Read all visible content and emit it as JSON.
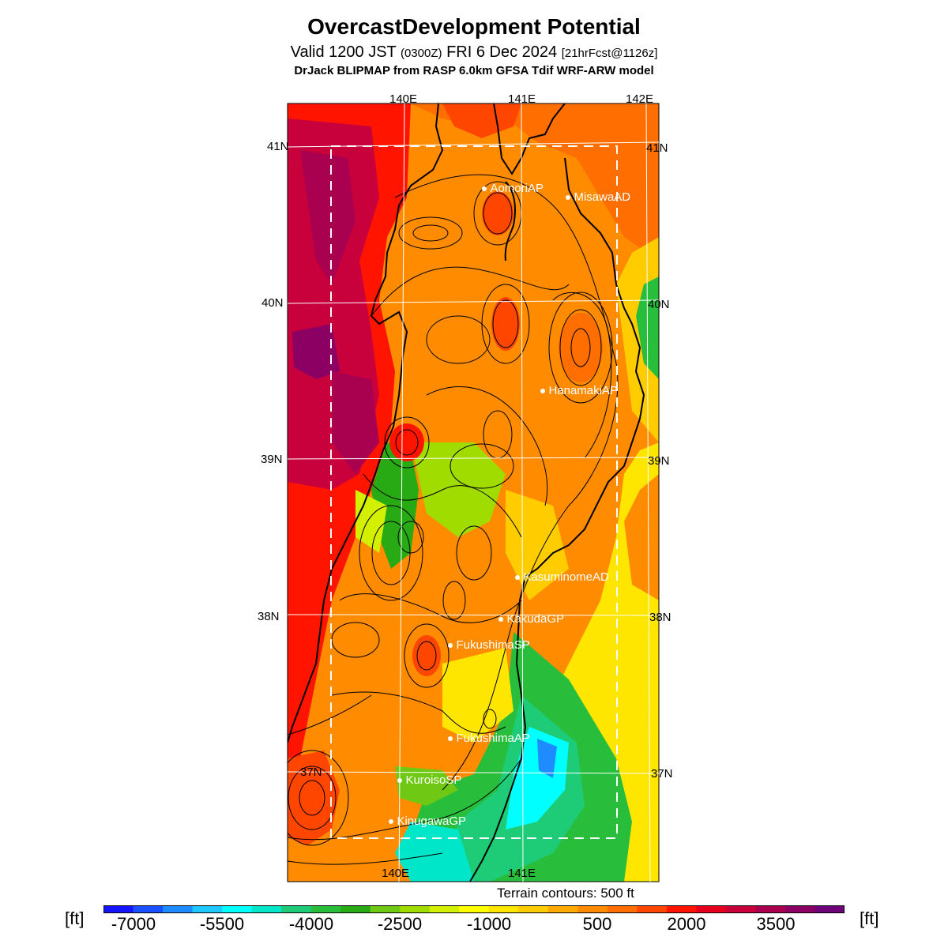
{
  "header": {
    "title": "OvercastDevelopment Potential",
    "valid_prefix": "Valid 1200 JST",
    "utc": "(0300Z)",
    "date": "FRI 6 Dec 2024",
    "forecast": "[21hrFcst@1126z]",
    "model": "DrJack BLIPMAP from RASP 6.0km GFSA Tdif WRF-ARW model"
  },
  "map": {
    "lon_top": [
      "140E",
      "141E",
      "142E"
    ],
    "lon_bottom": [
      "140E",
      "141E"
    ],
    "lat_left": [
      "41N",
      "40N",
      "39N",
      "38N",
      "37N"
    ],
    "lat_right": [
      "41N",
      "40N",
      "39N",
      "38N",
      "37N"
    ],
    "stations": [
      {
        "name": "AomoriAP"
      },
      {
        "name": "MisawaAD"
      },
      {
        "name": "HanamakiAP"
      },
      {
        "name": "KasuminomeAD"
      },
      {
        "name": "KakudaGP"
      },
      {
        "name": "FukushimaSP"
      },
      {
        "name": "FukushimaAP"
      },
      {
        "name": "KuroisoSP"
      },
      {
        "name": "KinugawaGP"
      }
    ]
  },
  "footer": {
    "terrain_note": "Terrain contours: 500 ft",
    "unit_left": "[ft]",
    "unit_right": "[ft]"
  },
  "colorbar": {
    "labels": [
      "-7000",
      "-5500",
      "-4000",
      "-2500",
      "-1000",
      "500",
      "2000",
      "3500"
    ],
    "colors": [
      "#1414ff",
      "#1a50ff",
      "#1e8cff",
      "#1ec8ff",
      "#00ffff",
      "#00e6c8",
      "#1ecc78",
      "#28be3c",
      "#28aa14",
      "#6ec814",
      "#a0dc00",
      "#d2f000",
      "#ffff00",
      "#ffe600",
      "#ffcc00",
      "#ffaa00",
      "#ff8c00",
      "#ff6e00",
      "#ff4600",
      "#ff1400",
      "#e6001e",
      "#c8003c",
      "#aa0050",
      "#8c0064",
      "#6e0078"
    ]
  }
}
